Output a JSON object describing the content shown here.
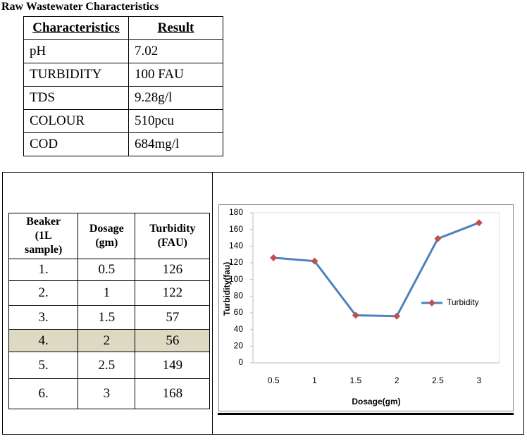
{
  "header": {
    "title": "Raw Wastewater Characteristics"
  },
  "table1": {
    "header": [
      "Characteristics",
      "Result"
    ],
    "rows": [
      [
        "pH",
        "7.02"
      ],
      [
        "TURBIDITY",
        "100 FAU"
      ],
      [
        "TDS",
        "9.28g/l"
      ],
      [
        "COLOUR",
        "510pcu"
      ],
      [
        "COD",
        "684mg/l"
      ]
    ]
  },
  "table2": {
    "header": [
      "Beaker (1L sample)",
      "Dosage (gm)",
      "Turbidity (FAU)"
    ],
    "rows": [
      [
        "1.",
        "0.5",
        "126"
      ],
      [
        "2.",
        "1",
        "122"
      ],
      [
        "3.",
        "1.5",
        "57"
      ],
      [
        "4.",
        "2",
        "56"
      ],
      [
        "5.",
        "2.5",
        "149"
      ],
      [
        "6.",
        "3",
        "168"
      ]
    ],
    "highlight_row": 3
  },
  "chart_data": {
    "type": "line",
    "x_label": "Dosage(gm)",
    "y_label": "Turbidity(fau)",
    "categories": [
      "0.5",
      "1",
      "1.5",
      "2",
      "2.5",
      "3"
    ],
    "series": [
      {
        "name": "Turbidity",
        "color": "#4f81bd",
        "marker_color": "#c0504d",
        "values": [
          126,
          122,
          57,
          56,
          149,
          168
        ]
      }
    ],
    "ylim": [
      0,
      180
    ],
    "yticks": [
      0,
      20,
      40,
      60,
      80,
      100,
      120,
      140,
      160,
      180
    ],
    "legend": "right"
  }
}
